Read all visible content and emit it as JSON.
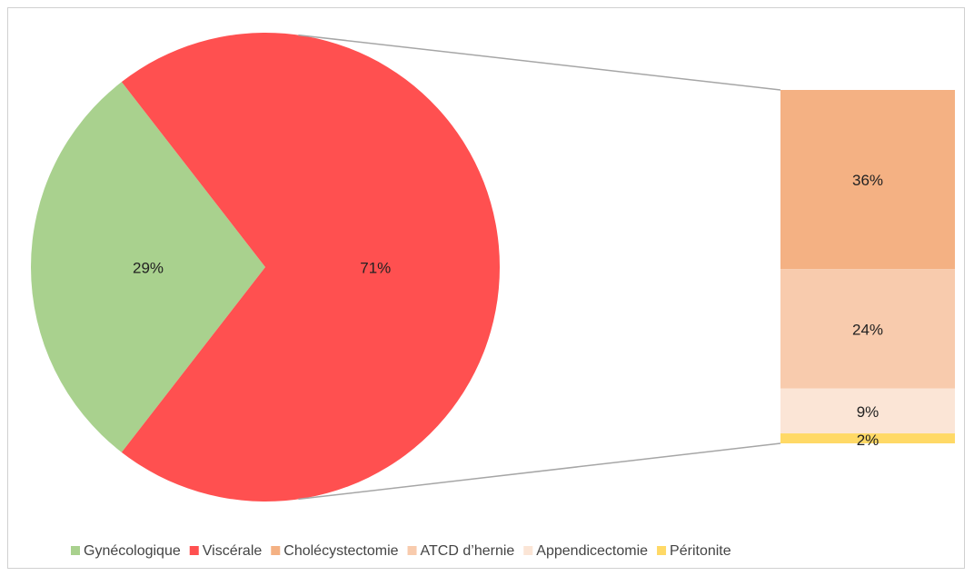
{
  "chart_data": {
    "type": "pie",
    "categories": [
      "Gynécologique",
      "Viscérale"
    ],
    "values": [
      29,
      71
    ],
    "value_labels": [
      "29%",
      "71%"
    ],
    "colors": [
      "#a9d18e",
      "#ff5050"
    ],
    "breakdown": {
      "categories": [
        "Cholécystectomie",
        "ATCD d’hernie",
        "Appendicectomie",
        "Péritonite"
      ],
      "values": [
        36,
        24,
        9,
        2
      ],
      "value_labels": [
        "36%",
        "24%",
        "9%",
        "2%"
      ],
      "colors": [
        "#f4b183",
        "#f8cbad",
        "#fbe5d6",
        "#ffd966"
      ]
    },
    "legend": "bottom"
  }
}
